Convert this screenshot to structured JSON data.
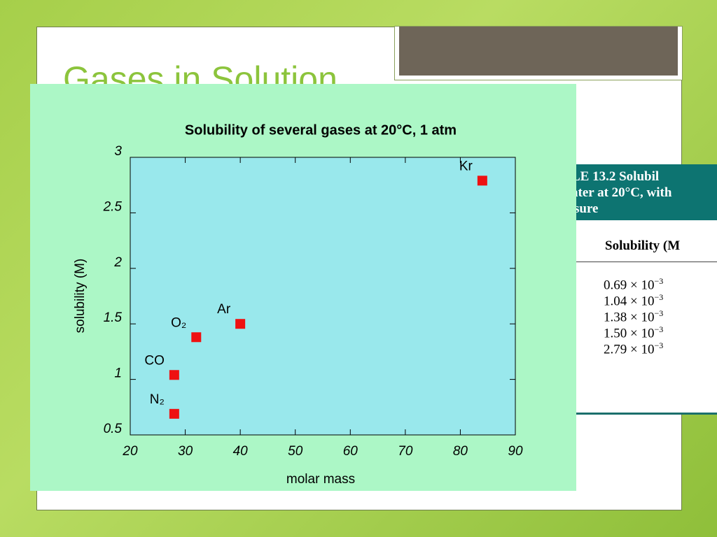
{
  "slide": {
    "title": "Gases in Solution"
  },
  "table": {
    "header": [
      "LE 13.2    Solubil",
      "ater at 20°C, with",
      "sure"
    ],
    "column_header": "Solubility (M",
    "rows": [
      {
        "mantissa": "0.69 × 10",
        "exponent": "−3"
      },
      {
        "mantissa": "1.04 × 10",
        "exponent": "−3"
      },
      {
        "mantissa": "1.38 × 10",
        "exponent": "−3"
      },
      {
        "mantissa": "1.50 × 10",
        "exponent": "−3"
      },
      {
        "mantissa": "2.79 × 10",
        "exponent": "−3"
      }
    ]
  },
  "chart_data": {
    "type": "scatter",
    "title": "Solubility of several gases at 20°C, 1 atm",
    "x_label": "molar mass",
    "y_label": "solubility (M)",
    "labels": [
      "N₂",
      "CO",
      "O₂",
      "Ar",
      "Kr"
    ],
    "x": [
      28,
      28,
      32,
      40,
      84
    ],
    "values": [
      0.69,
      1.04,
      1.38,
      1.5,
      2.79
    ],
    "color": "#ee1111",
    "xlim": [
      20,
      90
    ],
    "xticks": [
      20,
      30,
      40,
      50,
      60,
      70,
      80,
      90
    ],
    "ylim": [
      0.5,
      3
    ],
    "yticks": [
      0.5,
      1,
      1.5,
      2,
      2.5,
      3
    ]
  }
}
